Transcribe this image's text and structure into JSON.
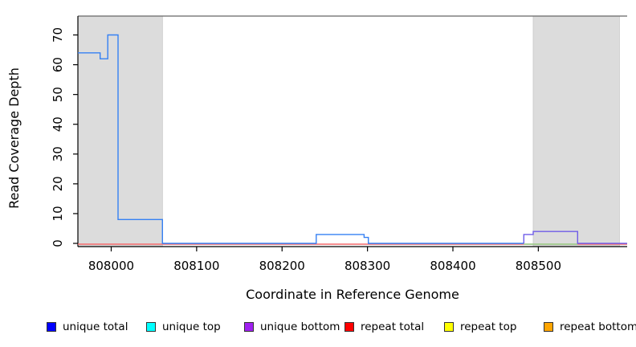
{
  "figure": {
    "title": ""
  },
  "chart_data": {
    "type": "line",
    "title": "",
    "xlabel": "Coordinate in Reference Genome",
    "ylabel": "Read Coverage Depth",
    "xlim": [
      807961,
      808604
    ],
    "ylim": [
      0,
      76
    ],
    "x_ticks": [
      808000,
      808100,
      808200,
      808300,
      808400,
      808500
    ],
    "y_ticks": [
      0,
      10,
      20,
      30,
      40,
      50,
      60,
      70
    ],
    "grid": false,
    "legend_position": "bottom",
    "shaded_regions": [
      {
        "name": "shaded-region-left",
        "x0": 807961,
        "x1": 808060,
        "color": "#dcdcdc"
      },
      {
        "name": "shaded-region-right",
        "x0": 808494,
        "x1": 808595,
        "color": "#dcdcdc"
      }
    ],
    "series": [
      {
        "name": "repeat total baseline",
        "color": "#f4696b",
        "points": [
          [
            807961,
            0
          ],
          [
            808604,
            0
          ]
        ]
      },
      {
        "name": "unique total",
        "color": "#3580f3",
        "points": [
          [
            807961,
            64
          ],
          [
            807987,
            64
          ],
          [
            807987,
            62
          ],
          [
            807996,
            62
          ],
          [
            807996,
            70
          ],
          [
            808008,
            70
          ],
          [
            808008,
            8
          ],
          [
            808060,
            8
          ],
          [
            808060,
            0
          ],
          [
            808240,
            0
          ],
          [
            808240,
            3
          ],
          [
            808296,
            3
          ],
          [
            808296,
            2
          ],
          [
            808301,
            2
          ],
          [
            808301,
            0
          ],
          [
            808483,
            0
          ]
        ]
      },
      {
        "name": "green segment unlabeled",
        "color": "#8fd98f",
        "points": [
          [
            808483,
            0
          ],
          [
            808546,
            0
          ]
        ]
      },
      {
        "name": "unique bottom",
        "color": "#6e5ce8",
        "points": [
          [
            808483,
            0
          ],
          [
            808483,
            3
          ],
          [
            808494,
            3
          ],
          [
            808494,
            4
          ],
          [
            808546,
            4
          ],
          [
            808546,
            0
          ],
          [
            808604,
            0
          ]
        ]
      }
    ]
  },
  "legend": {
    "items": [
      {
        "label": "unique total",
        "color": "#0000ff"
      },
      {
        "label": "unique top",
        "color": "#00ffff"
      },
      {
        "label": "unique bottom",
        "color": "#a020f0"
      },
      {
        "label": "repeat total",
        "color": "#ff0000"
      },
      {
        "label": "repeat top",
        "color": "#ffff00"
      },
      {
        "label": "repeat bottom",
        "color": "#ffa500"
      }
    ]
  }
}
